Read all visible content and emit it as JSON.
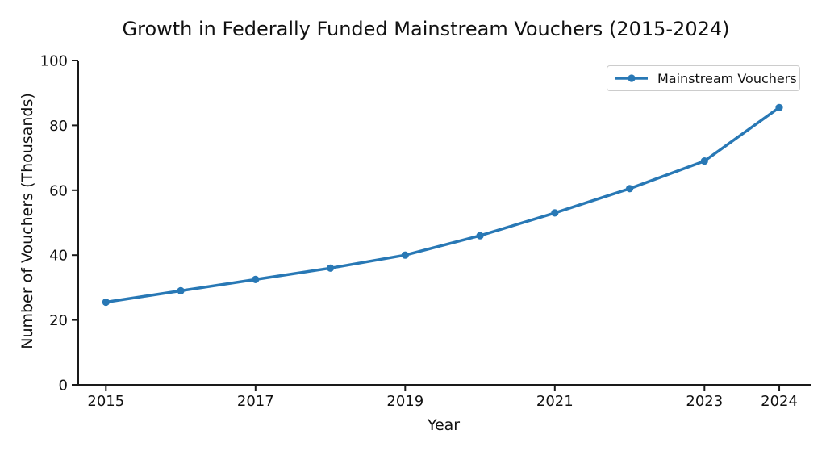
{
  "chart_data": {
    "type": "line",
    "title": "Growth in Federally Funded Mainstream Vouchers (2015-2024)",
    "xlabel": "Year",
    "ylabel": "Number of Vouchers (Thousands)",
    "x": [
      2015,
      2016,
      2017,
      2018,
      2019,
      2020,
      2021,
      2022,
      2023,
      2024
    ],
    "series": [
      {
        "name": "Mainstream Vouchers",
        "color": "#2878b5",
        "values": [
          25.5,
          29,
          32.5,
          36,
          40,
          46,
          53,
          60.5,
          69,
          85.5
        ]
      }
    ],
    "xticks": [
      2015,
      2017,
      2019,
      2021,
      2023,
      2024
    ],
    "yticks": [
      0,
      20,
      40,
      60,
      80,
      100
    ],
    "xlim": [
      2014.63,
      2024.42
    ],
    "ylim": [
      0,
      100
    ],
    "grid": false,
    "legend": {
      "position": "upper right",
      "entries": [
        "Mainstream Vouchers"
      ]
    },
    "colors": {
      "line": "#2878b5",
      "axis": "#1a1a1a",
      "text": "#111111",
      "legend_border": "#cccccc",
      "background": "#ffffff"
    }
  }
}
